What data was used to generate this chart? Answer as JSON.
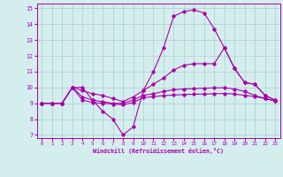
{
  "xlabel": "Windchill (Refroidissement éolien,°C)",
  "bg_color": "#d4eeee",
  "grid_color": "#aacccc",
  "line_color": "#aa00aa",
  "xlim": [
    -0.5,
    23.5
  ],
  "ylim": [
    6.8,
    15.3
  ],
  "yticks": [
    7,
    8,
    9,
    10,
    11,
    12,
    13,
    14,
    15
  ],
  "xticks": [
    0,
    1,
    2,
    3,
    4,
    5,
    6,
    7,
    8,
    9,
    10,
    11,
    12,
    13,
    14,
    15,
    16,
    17,
    18,
    19,
    20,
    21,
    22,
    23
  ],
  "line1_x": [
    0,
    1,
    2,
    3,
    4,
    5,
    6,
    7,
    8,
    9,
    10,
    11,
    12,
    13,
    14,
    15,
    16,
    17,
    18,
    19,
    20,
    21,
    22,
    23
  ],
  "line1_y": [
    9,
    9,
    9,
    10,
    10,
    9.2,
    8.5,
    8.0,
    7.0,
    7.5,
    9.8,
    11.0,
    12.5,
    14.5,
    14.8,
    14.9,
    14.7,
    13.7,
    12.5,
    11.2,
    10.3,
    10.2,
    9.5,
    9.2
  ],
  "line2_x": [
    0,
    1,
    2,
    3,
    4,
    5,
    6,
    7,
    8,
    9,
    10,
    11,
    12,
    13,
    14,
    15,
    16,
    17,
    18,
    19,
    20,
    21,
    22,
    23
  ],
  "line2_y": [
    9,
    9,
    9,
    10,
    9.8,
    9.6,
    9.5,
    9.3,
    9.1,
    9.4,
    9.8,
    10.2,
    10.6,
    11.1,
    11.4,
    11.5,
    11.5,
    11.5,
    12.5,
    11.2,
    10.3,
    10.2,
    9.5,
    9.2
  ],
  "line3_x": [
    0,
    1,
    2,
    3,
    4,
    5,
    6,
    7,
    8,
    9,
    10,
    11,
    12,
    13,
    14,
    15,
    16,
    17,
    18,
    19,
    20,
    21,
    22,
    23
  ],
  "line3_y": [
    9,
    9,
    9,
    10,
    9.4,
    9.2,
    9.1,
    9.0,
    9.0,
    9.2,
    9.5,
    9.6,
    9.75,
    9.85,
    9.9,
    9.93,
    9.95,
    9.97,
    9.98,
    9.9,
    9.75,
    9.5,
    9.3,
    9.15
  ],
  "line4_x": [
    0,
    1,
    2,
    3,
    4,
    5,
    6,
    7,
    8,
    9,
    10,
    11,
    12,
    13,
    14,
    15,
    16,
    17,
    18,
    19,
    20,
    21,
    22,
    23
  ],
  "line4_y": [
    9,
    9,
    9,
    10,
    9.2,
    9.05,
    9.0,
    8.95,
    8.9,
    9.05,
    9.35,
    9.42,
    9.48,
    9.52,
    9.55,
    9.57,
    9.58,
    9.6,
    9.62,
    9.58,
    9.5,
    9.42,
    9.3,
    9.15
  ]
}
